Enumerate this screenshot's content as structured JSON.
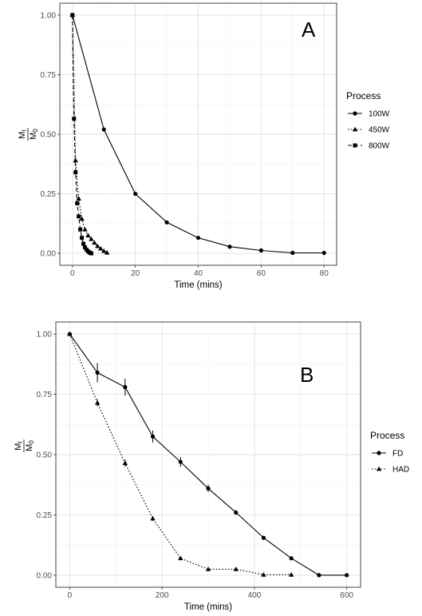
{
  "chart_data": [
    {
      "type": "line",
      "panel_label": "A",
      "xlabel": "Time (mins)",
      "ylabel": {
        "numerator": "M",
        "numerator_sub": "t",
        "denominator": "M",
        "denominator_sub": "0"
      },
      "xlim": [
        -4,
        84
      ],
      "ylim": [
        -0.05,
        1.05
      ],
      "x_ticks": [
        0,
        20,
        40,
        60,
        80
      ],
      "y_ticks": [
        0.0,
        0.25,
        0.5,
        0.75,
        1.0
      ],
      "x_tick_labels": [
        "0",
        "20",
        "40",
        "60",
        "80"
      ],
      "y_tick_labels": [
        "0.00",
        "0.25",
        "0.50",
        "0.75",
        "1.00"
      ],
      "grid": true,
      "legend": {
        "title": "Process",
        "placement": "right"
      },
      "series": [
        {
          "name": "100W",
          "marker": "circle",
          "dash": "solid",
          "x": [
            0,
            10,
            20,
            30,
            40,
            50,
            60,
            70,
            80
          ],
          "y": [
            1.0,
            0.52,
            0.25,
            0.13,
            0.065,
            0.028,
            0.012,
            0.002,
            0.002
          ]
        },
        {
          "name": "450W",
          "marker": "triangle",
          "dash": "dotted",
          "x": [
            0,
            1,
            2,
            3,
            4,
            5,
            6,
            7,
            8,
            9,
            10,
            11
          ],
          "y": [
            1.0,
            0.39,
            0.23,
            0.145,
            0.1,
            0.075,
            0.06,
            0.045,
            0.03,
            0.02,
            0.01,
            0.003
          ]
        },
        {
          "name": "800W",
          "marker": "square",
          "dash": "dashed",
          "x": [
            0,
            0.5,
            1,
            1.5,
            2,
            2.5,
            3,
            3.5,
            4,
            4.5,
            5,
            5.5,
            6
          ],
          "y": [
            1.0,
            0.565,
            0.34,
            0.21,
            0.155,
            0.1,
            0.065,
            0.04,
            0.025,
            0.015,
            0.008,
            0.003,
            0.0
          ]
        }
      ]
    },
    {
      "type": "line",
      "panel_label": "B",
      "xlabel": "Time (mins)",
      "ylabel": {
        "numerator": "M",
        "numerator_sub": "t",
        "denominator": "M",
        "denominator_sub": "0"
      },
      "xlim": [
        -30,
        630
      ],
      "ylim": [
        -0.05,
        1.05
      ],
      "x_ticks": [
        0,
        200,
        400,
        600
      ],
      "y_ticks": [
        0.0,
        0.25,
        0.5,
        0.75,
        1.0
      ],
      "x_tick_labels": [
        "0",
        "200",
        "400",
        "600"
      ],
      "y_tick_labels": [
        "0.00",
        "0.25",
        "0.50",
        "0.75",
        "1.00"
      ],
      "grid": true,
      "legend": {
        "title": "Process",
        "placement": "right"
      },
      "series": [
        {
          "name": "FD",
          "marker": "circle",
          "dash": "solid",
          "x": [
            0,
            60,
            120,
            180,
            240,
            300,
            360,
            420,
            480,
            540,
            600
          ],
          "y": [
            1.0,
            0.84,
            0.78,
            0.575,
            0.47,
            0.36,
            0.26,
            0.155,
            0.07,
            0.0,
            0.0
          ],
          "error": [
            0.0,
            0.04,
            0.035,
            0.025,
            0.02,
            0.015,
            0.01,
            0.008,
            0.005,
            0.0,
            0.0
          ]
        },
        {
          "name": "HAD",
          "marker": "triangle",
          "dash": "dotted",
          "x": [
            0,
            60,
            120,
            180,
            240,
            300,
            360,
            420,
            480
          ],
          "y": [
            1.0,
            0.715,
            0.465,
            0.235,
            0.07,
            0.025,
            0.025,
            0.002,
            0.002
          ],
          "error": [
            0.0,
            0.015,
            0.015,
            0.01,
            0.005,
            0.005,
            0.005,
            0.0,
            0.0
          ]
        }
      ]
    }
  ]
}
